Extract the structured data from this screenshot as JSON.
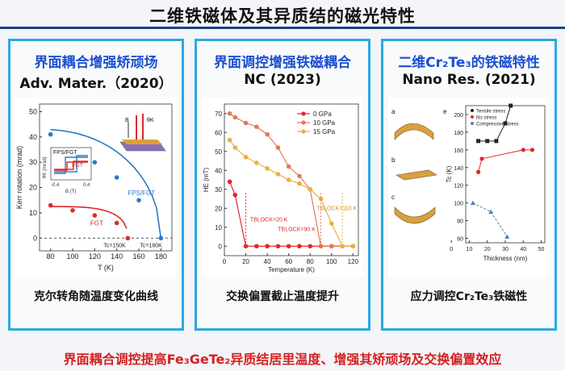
{
  "page": {
    "title": "二维铁磁体及其异质结的磁光特性"
  },
  "panels": [
    {
      "heading": "界面耦合增强矫顽场",
      "journal": "Adv. Mater.（2020）",
      "caption": "克尔转角随温度变化曲线",
      "chart_data": {
        "type": "scatter",
        "ylabel": "Kerr rotation (mrad)",
        "xlabel": "T (K)",
        "xticks": [
          80,
          100,
          120,
          140,
          160,
          180
        ],
        "yticks": [
          0,
          10,
          20,
          30,
          40,
          50
        ],
        "xlim": [
          70,
          190
        ],
        "ylim": [
          -5,
          53
        ],
        "series": [
          {
            "name": "FPS/FGT",
            "color": "#2a7ac8",
            "points": [
              [
                80,
                41
              ],
              [
                100,
                35
              ],
              [
                120,
                30
              ],
              [
                140,
                24
              ],
              [
                160,
                15
              ],
              [
                180,
                0
              ]
            ]
          },
          {
            "name": "FGT",
            "color": "#e02828",
            "points": [
              [
                80,
                13
              ],
              [
                100,
                11
              ],
              [
                120,
                9
              ],
              [
                140,
                6
              ],
              [
                150,
                0
              ]
            ]
          }
        ],
        "annotations": [
          "Tc=150K",
          "Tc=180K",
          "FPS/FGT",
          "FGT",
          "B",
          "θK"
        ],
        "inset": {
          "ylabel": "θK (mrad)",
          "xlabel": "B (T)",
          "xticks": [
            "-0.4",
            "0.4"
          ]
        }
      }
    },
    {
      "heading": "界面调控增强铁磁耦合",
      "journal": "NC (2023)",
      "caption": "交换偏置截止温度提升",
      "chart_data": {
        "type": "line",
        "ylabel": "HE (mT)",
        "xlabel": "Temperature (K)",
        "xticks": [
          0,
          20,
          40,
          60,
          80,
          100,
          120
        ],
        "yticks": [
          0,
          10,
          20,
          30,
          40,
          50,
          60,
          70
        ],
        "xlim": [
          0,
          125
        ],
        "ylim": [
          -5,
          75
        ],
        "series": [
          {
            "name": "0 GPa",
            "color": "#e02828",
            "points": [
              [
                5,
                34
              ],
              [
                10,
                27
              ],
              [
                20,
                0
              ],
              [
                30,
                0
              ],
              [
                40,
                0
              ],
              [
                50,
                0
              ],
              [
                60,
                0
              ],
              [
                70,
                0
              ],
              [
                80,
                0
              ],
              [
                90,
                0
              ],
              [
                100,
                0
              ],
              [
                110,
                0
              ],
              [
                120,
                0
              ]
            ]
          },
          {
            "name": "10 GPa",
            "color": "#e07a5a",
            "points": [
              [
                5,
                70
              ],
              [
                10,
                68
              ],
              [
                20,
                65
              ],
              [
                30,
                63
              ],
              [
                40,
                59
              ],
              [
                50,
                52
              ],
              [
                60,
                42
              ],
              [
                70,
                37
              ],
              [
                80,
                30
              ],
              [
                90,
                0
              ],
              [
                100,
                0
              ],
              [
                110,
                0
              ],
              [
                120,
                0
              ]
            ]
          },
          {
            "name": "15 GPa",
            "color": "#e8b040",
            "points": [
              [
                5,
                56
              ],
              [
                10,
                52
              ],
              [
                20,
                47
              ],
              [
                30,
                44
              ],
              [
                40,
                41
              ],
              [
                50,
                38
              ],
              [
                60,
                35
              ],
              [
                70,
                33
              ],
              [
                80,
                30
              ],
              [
                90,
                25
              ],
              [
                100,
                12
              ],
              [
                110,
                0
              ],
              [
                120,
                0
              ]
            ]
          }
        ],
        "annotations": [
          "TBLOCK=20 K",
          "TBLOCK=90 K",
          "TBLOCK=110 K"
        ]
      }
    },
    {
      "heading": "二维Cr₂Te₃的铁磁特性",
      "journal": "Nano Res. (2021)",
      "caption": "应力调控Cr₂Te₃铁磁性",
      "chart_data": {
        "type": "line",
        "ylabel": "Tc (K)",
        "xlabel": "Thickness (nm)",
        "xticks": [
          0,
          10,
          20,
          30,
          40,
          50
        ],
        "yticks": [
          60,
          80,
          100,
          120,
          140,
          160,
          180,
          200
        ],
        "xlim": [
          8,
          52
        ],
        "ylim": [
          55,
          210
        ],
        "series": [
          {
            "name": "Tensile stress",
            "color": "#222222",
            "points": [
              [
                15,
                170
              ],
              [
                20,
                170
              ],
              [
                25,
                170
              ],
              [
                30,
                190
              ],
              [
                33,
                210
              ]
            ]
          },
          {
            "name": "No stress",
            "color": "#e02828",
            "points": [
              [
                15,
                135
              ],
              [
                17,
                150
              ],
              [
                40,
                160
              ],
              [
                45,
                160
              ]
            ]
          },
          {
            "name": "Compressive stress",
            "color": "#4a80c0",
            "points": [
              [
                12,
                100
              ],
              [
                22,
                90
              ],
              [
                31,
                62
              ]
            ]
          }
        ],
        "annotations": [
          "a",
          "b",
          "c",
          "e"
        ]
      }
    }
  ],
  "footer": {
    "text": "界面耦合调控提高Fe₃GeTe₂异质结居里温度、增强其矫顽场及交换偏置效应"
  }
}
